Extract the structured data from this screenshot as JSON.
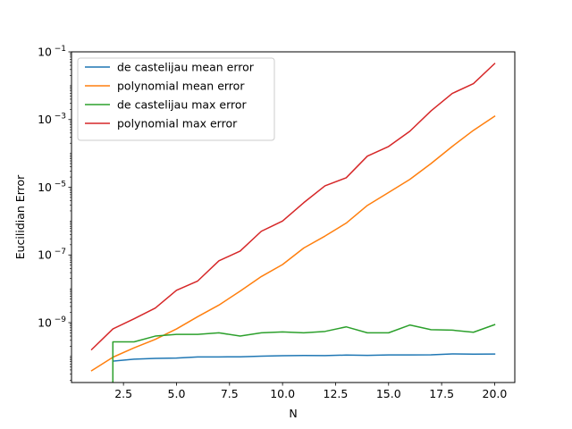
{
  "chart_data": {
    "type": "line",
    "xlabel": "N",
    "ylabel": "Eucilidian Error",
    "xlim": [
      0.05,
      20.95
    ],
    "ylim": [
      1.7e-11,
      0.1
    ],
    "yscale": "log",
    "legend_position": "top-left",
    "grid": false,
    "x_ticks": [
      {
        "value": 2.5,
        "label": "2.5"
      },
      {
        "value": 5.0,
        "label": "5.0"
      },
      {
        "value": 7.5,
        "label": "7.5"
      },
      {
        "value": 10.0,
        "label": "10.0"
      },
      {
        "value": 12.5,
        "label": "12.5"
      },
      {
        "value": 15.0,
        "label": "15.0"
      },
      {
        "value": 17.5,
        "label": "17.5"
      },
      {
        "value": 20.0,
        "label": "20.0"
      }
    ],
    "y_ticks": [
      {
        "value": 1e-09,
        "base": "10",
        "exp": "−9"
      },
      {
        "value": 1e-07,
        "base": "10",
        "exp": "−7"
      },
      {
        "value": 1e-05,
        "base": "10",
        "exp": "−5"
      },
      {
        "value": 0.001,
        "base": "10",
        "exp": "−3"
      },
      {
        "value": 0.1,
        "base": "10",
        "exp": "−1"
      }
    ],
    "series": [
      {
        "name": "de castelijau mean error",
        "color": "#1f77b4",
        "x": [
          2,
          3,
          4,
          5,
          6,
          7,
          8,
          9,
          10,
          11,
          12,
          13,
          14,
          15,
          16,
          17,
          18,
          19,
          20
        ],
        "y": [
          7.3e-11,
          8.3e-11,
          8.8e-11,
          9e-11,
          9.7e-11,
          9.7e-11,
          9.8e-11,
          1.02e-10,
          1.05e-10,
          1.07e-10,
          1.06e-10,
          1.1e-10,
          1.08e-10,
          1.11e-10,
          1.11e-10,
          1.12e-10,
          1.19e-10,
          1.17e-10,
          1.18e-10
        ]
      },
      {
        "name": "polynomial mean error",
        "color": "#ff7f0e",
        "x": [
          1,
          2,
          3,
          4,
          5,
          6,
          7,
          8,
          9,
          10,
          11,
          12,
          13,
          14,
          15,
          16,
          17,
          18,
          19,
          20
        ],
        "y": [
          3.8e-11,
          9.5e-11,
          1.8e-10,
          3.2e-10,
          6.5e-10,
          1.5e-09,
          3.3e-09,
          8.5e-09,
          2.3e-08,
          5.2e-08,
          1.6e-07,
          3.6e-07,
          8.7e-07,
          2.9e-06,
          7e-06,
          1.7e-05,
          5e-05,
          0.00016,
          0.00048,
          0.00125
        ]
      },
      {
        "name": "de castelijau max error",
        "color": "#2ca02c",
        "x": [
          2,
          2,
          3,
          4,
          5,
          6,
          7,
          8,
          9,
          10,
          11,
          12,
          13,
          14,
          15,
          16,
          17,
          18,
          19,
          20
        ],
        "y": [
          1.7e-11,
          2.7e-10,
          2.7e-10,
          4e-10,
          4.5e-10,
          4.5e-10,
          5e-10,
          4e-10,
          5e-10,
          5.3e-10,
          5e-10,
          5.5e-10,
          7.5e-10,
          5e-10,
          5e-10,
          8.5e-10,
          6.2e-10,
          6e-10,
          5.2e-10,
          8.7e-10
        ]
      },
      {
        "name": "polynomial max error",
        "color": "#d62728",
        "x": [
          1,
          2,
          3,
          4,
          5,
          6,
          7,
          8,
          9,
          10,
          11,
          12,
          13,
          14,
          15,
          16,
          17,
          18,
          19,
          20
        ],
        "y": [
          1.6e-10,
          6.5e-10,
          1.3e-09,
          2.7e-09,
          9e-09,
          1.7e-08,
          6.7e-08,
          1.3e-07,
          5e-07,
          1e-06,
          3.5e-06,
          1.1e-05,
          1.9e-05,
          8.3e-05,
          0.00016,
          0.00045,
          0.0018,
          0.0059,
          0.0115,
          0.045
        ]
      }
    ]
  }
}
